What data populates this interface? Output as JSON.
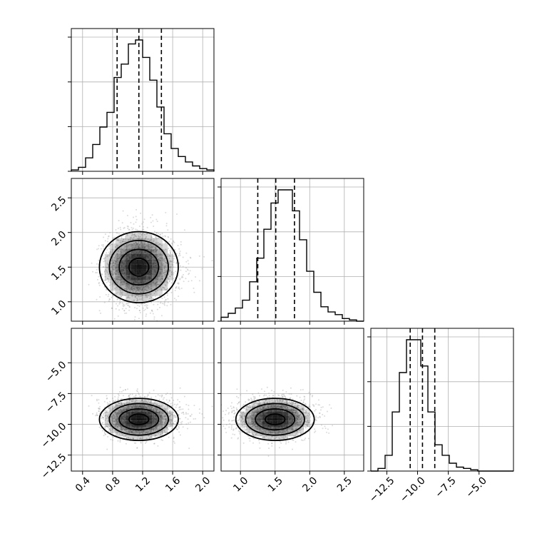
{
  "chart_data": {
    "type": "corner",
    "params": [
      {
        "range": [
          0.25,
          2.15
        ],
        "ticks": [
          0.4,
          0.8,
          1.2,
          1.6,
          2.0
        ],
        "tick_labels": [
          "0.4",
          "0.8",
          "1.2",
          "1.6",
          "2.0"
        ],
        "quantiles": [
          0.86,
          1.15,
          1.45
        ],
        "mean": 1.15,
        "sd": 0.25
      },
      {
        "range": [
          0.72,
          2.78
        ],
        "ticks": [
          1.0,
          1.5,
          2.0,
          2.5
        ],
        "tick_labels": [
          "1.0",
          "1.5",
          "2.0",
          "2.5"
        ],
        "quantiles": [
          1.25,
          1.51,
          1.78
        ],
        "mean": 1.5,
        "sd": 0.27
      },
      {
        "range": [
          -13.8,
          -2.2
        ],
        "ticks": [
          -12.5,
          -10.0,
          -7.5,
          -5.0
        ],
        "tick_labels": [
          "−12.5",
          "−10.0",
          "−7.5",
          "−5.0"
        ],
        "quantiles": [
          -10.6,
          -9.6,
          -8.6
        ],
        "mean": -9.6,
        "sd": 0.9
      }
    ],
    "hist_bins": 20,
    "diag_histograms": [
      {
        "param": 0,
        "counts": [
          1,
          3,
          10,
          20,
          33,
          44,
          70,
          80,
          95,
          98,
          85,
          68,
          48,
          28,
          17,
          11,
          7,
          4,
          2,
          1
        ]
      },
      {
        "param": 1,
        "counts": [
          3,
          6,
          10,
          16,
          30,
          48,
          70,
          90,
          100,
          100,
          84,
          62,
          38,
          22,
          11,
          7,
          5,
          2,
          1,
          0
        ]
      },
      {
        "param": 2,
        "counts": [
          0,
          2,
          12,
          45,
          75,
          100,
          100,
          80,
          45,
          20,
          12,
          6,
          3,
          2,
          1,
          0,
          0,
          0,
          0,
          0
        ]
      }
    ],
    "grid": true,
    "point_color": "#999999",
    "density_color": "#000000"
  }
}
